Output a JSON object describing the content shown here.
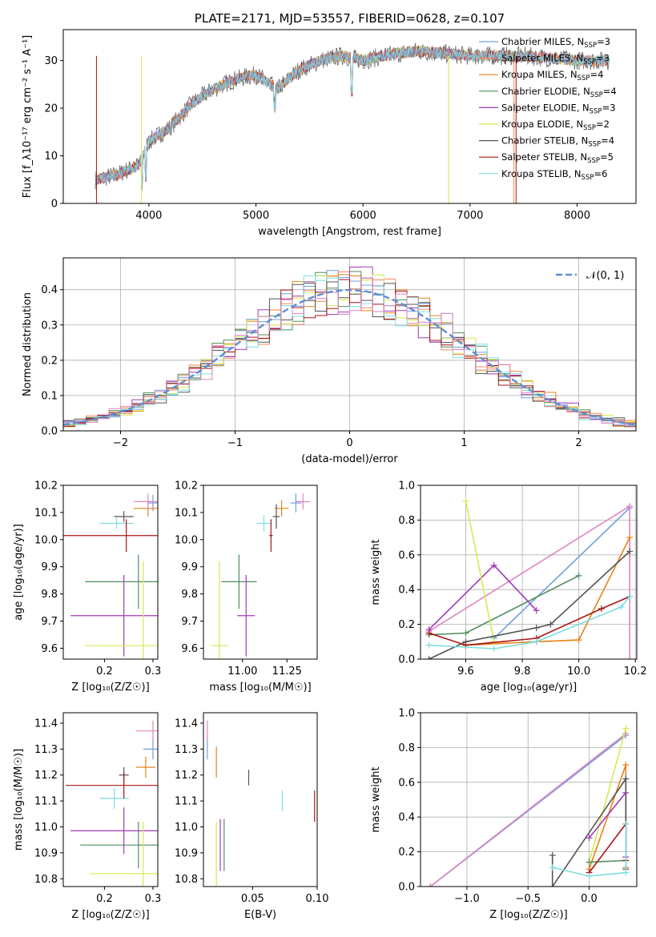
{
  "colors": [
    "#6f9fe0",
    "#f5875e",
    "#e8821a",
    "#4f8f5e",
    "#a23ab8",
    "#d6ea52",
    "#555555",
    "#a81414",
    "#7fdde0",
    "#e084c0"
  ],
  "colors_note": "palette used for the 9 models (+1 extra pink line in some panels)",
  "chart_data": [
    {
      "id": "spectrum",
      "type": "line",
      "title": "PLATE=2171, MJD=53557, FIBERID=0628, z=0.107",
      "xlabel": "wavelength [Angstrom, rest frame]",
      "ylabel": "Flux [f_λ10⁻¹⁷ erg cm⁻² s⁻¹ A⁻¹]",
      "xlim": [
        3200,
        8550
      ],
      "ylim": [
        0,
        36.5
      ],
      "xticks": [
        4000,
        5000,
        6000,
        7000,
        8000
      ],
      "yticks": [
        0,
        10,
        20,
        30
      ],
      "continuum_x": [
        3500,
        3700,
        3900,
        4000,
        4200,
        4400,
        4600,
        4800,
        5000,
        5200,
        5400,
        5600,
        5800,
        6000,
        6200,
        6500,
        7000,
        7500,
        8000,
        8300
      ],
      "continuum_y": [
        5,
        6,
        8,
        13,
        16,
        21,
        24,
        26,
        27,
        24,
        28,
        30,
        31,
        30,
        31,
        32,
        31,
        31,
        30,
        30
      ],
      "legend": [
        {
          "label": "Chabrier MILES, N",
          "sub": "SSP",
          "val": "=3"
        },
        {
          "label": "Salpeter MILES, N",
          "sub": "SSP",
          "val": "=3"
        },
        {
          "label": "Kroupa MILES, N",
          "sub": "SSP",
          "val": "=4"
        },
        {
          "label": "Chabrier ELODIE, N",
          "sub": "SSP",
          "val": "=4"
        },
        {
          "label": "Salpeter ELODIE, N",
          "sub": "SSP",
          "val": "=3"
        },
        {
          "label": "Kroupa ELODIE, N",
          "sub": "SSP",
          "val": "=2"
        },
        {
          "label": "Chabrier STELIB, N",
          "sub": "SSP",
          "val": "=4"
        },
        {
          "label": "Salpeter STELIB, N",
          "sub": "SSP",
          "val": "=5"
        },
        {
          "label": "Kroupa STELIB, N",
          "sub": "SSP",
          "val": "=6"
        }
      ],
      "legend_position": "right"
    },
    {
      "id": "residuals",
      "type": "histogram",
      "xlabel": "(data-model)/error",
      "ylabel": "Normed distribution",
      "xlim": [
        -2.5,
        2.5
      ],
      "ylim": [
        0,
        0.49
      ],
      "xticks": [
        -2,
        -1,
        0,
        1,
        2
      ],
      "yticks": [
        0.0,
        0.1,
        0.2,
        0.3,
        0.4
      ],
      "bin_width": 0.1,
      "legend": "𝒩(0, 1)",
      "legend_position": "top-right",
      "grid": true
    },
    {
      "id": "age_vs_Z",
      "type": "scatter",
      "xlabel": "Z [log₁₀(Z/Z☉)]",
      "ylabel": "age  [log₁₀(age/yr)]",
      "xlim": [
        0.115,
        0.31
      ],
      "ylim": [
        9.56,
        10.2
      ],
      "xticks": [
        0.2,
        0.3
      ],
      "yticks": [
        9.6,
        9.7,
        9.8,
        9.9,
        10.0,
        10.1,
        10.2
      ],
      "points": [
        {
          "x": 0.3,
          "y": 10.135,
          "xerr": 0.01,
          "yerr": 0.03,
          "c": 0
        },
        {
          "x": 0.29,
          "y": 10.115,
          "xerr": 0.03,
          "yerr": 0.03,
          "c": 2
        },
        {
          "x": 0.29,
          "y": 10.14,
          "xerr": 0.03,
          "yerr": 0.03,
          "c": 9
        },
        {
          "x": 0.24,
          "y": 10.085,
          "xerr": 0.02,
          "yerr": 0.02,
          "c": 6
        },
        {
          "x": 0.225,
          "y": 10.06,
          "xerr": 0.035,
          "yerr": 0.02,
          "c": 8
        },
        {
          "x": 0.245,
          "y": 10.015,
          "xerr": 0.13,
          "yerr": 0.06,
          "c": 7
        },
        {
          "x": 0.27,
          "y": 9.845,
          "xerr": 0.11,
          "yerr": 0.1,
          "c": 3
        },
        {
          "x": 0.24,
          "y": 9.72,
          "xerr": 0.11,
          "yerr": 0.15,
          "c": 4
        },
        {
          "x": 0.28,
          "y": 9.61,
          "xerr": 0.12,
          "yerr": 0.31,
          "c": 5
        }
      ]
    },
    {
      "id": "age_vs_mass",
      "type": "scatter",
      "xlabel": "mass [log₁₀(M/M☉)]",
      "ylabel": "",
      "xlim": [
        10.78,
        11.42
      ],
      "ylim": [
        9.56,
        10.2
      ],
      "xticks": [
        11.0,
        11.25
      ],
      "yticks": [
        9.6,
        9.7,
        9.8,
        9.9,
        10.0,
        10.1,
        10.2
      ],
      "points": [
        {
          "x": 11.3,
          "y": 10.135,
          "xerr": 0.03,
          "yerr": 0.035,
          "c": 0
        },
        {
          "x": 11.22,
          "y": 10.115,
          "xerr": 0.04,
          "yerr": 0.03,
          "c": 2
        },
        {
          "x": 11.34,
          "y": 10.14,
          "xerr": 0.04,
          "yerr": 0.03,
          "c": 9
        },
        {
          "x": 11.19,
          "y": 10.085,
          "xerr": 0.02,
          "yerr": 0.045,
          "c": 6
        },
        {
          "x": 11.12,
          "y": 10.06,
          "xerr": 0.04,
          "yerr": 0.03,
          "c": 8
        },
        {
          "x": 11.16,
          "y": 10.015,
          "xerr": 0.01,
          "yerr": 0.06,
          "c": 7
        },
        {
          "x": 10.98,
          "y": 9.845,
          "xerr": 0.1,
          "yerr": 0.1,
          "c": 3
        },
        {
          "x": 11.02,
          "y": 9.72,
          "xerr": 0.05,
          "yerr": 0.15,
          "c": 4
        },
        {
          "x": 10.87,
          "y": 9.61,
          "xerr": 0.05,
          "yerr": 0.31,
          "c": 5
        }
      ]
    },
    {
      "id": "mw_vs_age",
      "type": "line",
      "xlabel": "age  [log₁₀(age/yr)]",
      "ylabel": "mass weight",
      "xlim": [
        9.44,
        10.205
      ],
      "ylim": [
        0,
        1.0
      ],
      "xticks": [
        9.6,
        9.8,
        10.0,
        10.2
      ],
      "yticks": [
        0.0,
        0.2,
        0.4,
        0.6,
        0.8,
        1.0
      ],
      "grid": true,
      "series": [
        {
          "c": 0,
          "x": [
            9.7,
            10.18
          ],
          "y": [
            0.12,
            0.87
          ]
        },
        {
          "c": 9,
          "x": [
            9.47,
            10.18,
            10.18
          ],
          "y": [
            0.16,
            0.88,
            0.0
          ]
        },
        {
          "c": 2,
          "x": [
            9.6,
            9.85,
            10.0,
            10.18
          ],
          "y": [
            0.08,
            0.1,
            0.11,
            0.7
          ]
        },
        {
          "c": 3,
          "x": [
            9.47,
            9.6,
            10.0
          ],
          "y": [
            0.14,
            0.15,
            0.48
          ]
        },
        {
          "c": 4,
          "x": [
            9.47,
            9.7,
            9.85
          ],
          "y": [
            0.17,
            0.54,
            0.28
          ]
        },
        {
          "c": 5,
          "x": [
            9.6,
            9.7
          ],
          "y": [
            0.91,
            0.1
          ]
        },
        {
          "c": 6,
          "x": [
            9.47,
            9.6,
            9.85,
            9.9,
            10.18
          ],
          "y": [
            0.0,
            0.1,
            0.18,
            0.2,
            0.62
          ]
        },
        {
          "c": 7,
          "x": [
            9.47,
            9.6,
            9.85,
            10.08,
            10.18
          ],
          "y": [
            0.15,
            0.08,
            0.12,
            0.29,
            0.36
          ]
        },
        {
          "c": 8,
          "x": [
            9.47,
            9.7,
            9.85,
            10.15,
            10.18
          ],
          "y": [
            0.08,
            0.06,
            0.1,
            0.3,
            0.36
          ]
        }
      ]
    },
    {
      "id": "mass_vs_Z",
      "type": "scatter",
      "xlabel": "Z [log₁₀(Z/Z☉)]",
      "ylabel": "mass [log₁₀(M/M☉)]",
      "xlim": [
        0.115,
        0.31
      ],
      "ylim": [
        10.77,
        11.44
      ],
      "xticks": [
        0.2,
        0.3
      ],
      "yticks": [
        10.8,
        10.9,
        11.0,
        11.1,
        11.2,
        11.3,
        11.4
      ],
      "points": [
        {
          "x": 0.3,
          "y": 11.3,
          "xerr": 0.02,
          "yerr": 0.04,
          "c": 0
        },
        {
          "x": 0.285,
          "y": 11.23,
          "xerr": 0.02,
          "yerr": 0.04,
          "c": 2
        },
        {
          "x": 0.3,
          "y": 11.37,
          "xerr": 0.035,
          "yerr": 0.04,
          "c": 9
        },
        {
          "x": 0.24,
          "y": 11.2,
          "xerr": 0.01,
          "yerr": 0.03,
          "c": 6
        },
        {
          "x": 0.22,
          "y": 11.11,
          "xerr": 0.03,
          "yerr": 0.04,
          "c": 8
        },
        {
          "x": 0.24,
          "y": 11.16,
          "xerr": 0.12,
          "yerr": 0.05,
          "c": 7
        },
        {
          "x": 0.27,
          "y": 10.93,
          "xerr": 0.12,
          "yerr": 0.09,
          "c": 3
        },
        {
          "x": 0.24,
          "y": 10.985,
          "xerr": 0.11,
          "yerr": 0.09,
          "c": 4
        },
        {
          "x": 0.28,
          "y": 10.82,
          "xerr": 0.11,
          "yerr": 0.2,
          "c": 5
        }
      ]
    },
    {
      "id": "mass_vs_EBV",
      "type": "scatter",
      "xlabel": "E(B-V)",
      "ylabel": "",
      "xlim": [
        0.012,
        0.1
      ],
      "ylim": [
        10.77,
        11.44
      ],
      "xticks": [
        0.05,
        0.1
      ],
      "yticks": [
        10.8,
        10.9,
        11.0,
        11.1,
        11.2,
        11.3,
        11.4
      ],
      "points": [
        {
          "x": 0.015,
          "y": 11.3,
          "xerr": 0.0,
          "yerr": 0.04,
          "c": 0
        },
        {
          "x": 0.022,
          "y": 11.25,
          "xerr": 0.0,
          "yerr": 0.06,
          "c": 2
        },
        {
          "x": 0.015,
          "y": 11.37,
          "xerr": 0.0,
          "yerr": 0.04,
          "c": 9
        },
        {
          "x": 0.047,
          "y": 11.19,
          "xerr": 0.0,
          "yerr": 0.03,
          "c": 6
        },
        {
          "x": 0.073,
          "y": 11.1,
          "xerr": 0.0,
          "yerr": 0.04,
          "c": 8
        },
        {
          "x": 0.098,
          "y": 11.08,
          "xerr": 0.0,
          "yerr": 0.06,
          "c": 7
        },
        {
          "x": 0.028,
          "y": 10.93,
          "xerr": 0.0,
          "yerr": 0.1,
          "c": 3
        },
        {
          "x": 0.025,
          "y": 10.93,
          "xerr": 0.0,
          "yerr": 0.1,
          "c": 4
        },
        {
          "x": 0.022,
          "y": 10.82,
          "xerr": 0.0,
          "yerr": 0.2,
          "c": 5
        }
      ]
    },
    {
      "id": "mw_vs_Z",
      "type": "line",
      "xlabel": "Z [log₁₀(Z/Z☉)]",
      "ylabel": "mass weight",
      "xlim": [
        -1.38,
        0.39
      ],
      "ylim": [
        0,
        1.0
      ],
      "xticks": [
        -1.0,
        -0.5,
        0.0
      ],
      "yticks": [
        0.0,
        0.2,
        0.4,
        0.6,
        0.8,
        1.0
      ],
      "grid": true,
      "series": [
        {
          "c": 0,
          "x": [
            -1.3,
            0.3
          ],
          "y": [
            0.0,
            0.87
          ]
        },
        {
          "c": 9,
          "x": [
            -1.3,
            0.3
          ],
          "y": [
            0.0,
            0.88
          ]
        },
        {
          "c": 5,
          "x": [
            0.0,
            0.3
          ],
          "y": [
            0.14,
            0.91
          ]
        },
        {
          "c": 2,
          "x": [
            0.0,
            0.3,
            0.3
          ],
          "y": [
            0.1,
            0.7,
            0.11
          ]
        },
        {
          "c": 3,
          "x": [
            0.0,
            0.3
          ],
          "y": [
            0.14,
            0.15
          ]
        },
        {
          "c": 4,
          "x": [
            0.0,
            0.3,
            0.3
          ],
          "y": [
            0.28,
            0.54,
            0.17
          ]
        },
        {
          "c": 6,
          "x": [
            -0.3,
            -0.3,
            0.3,
            0.3
          ],
          "y": [
            0.18,
            0.0,
            0.62,
            0.1
          ]
        },
        {
          "c": 7,
          "x": [
            0.0,
            0.3,
            0.3
          ],
          "y": [
            0.08,
            0.36,
            0.15
          ]
        },
        {
          "c": 8,
          "x": [
            -0.3,
            0.0,
            0.3,
            0.3
          ],
          "y": [
            0.11,
            0.06,
            0.08,
            0.36
          ]
        }
      ]
    }
  ]
}
